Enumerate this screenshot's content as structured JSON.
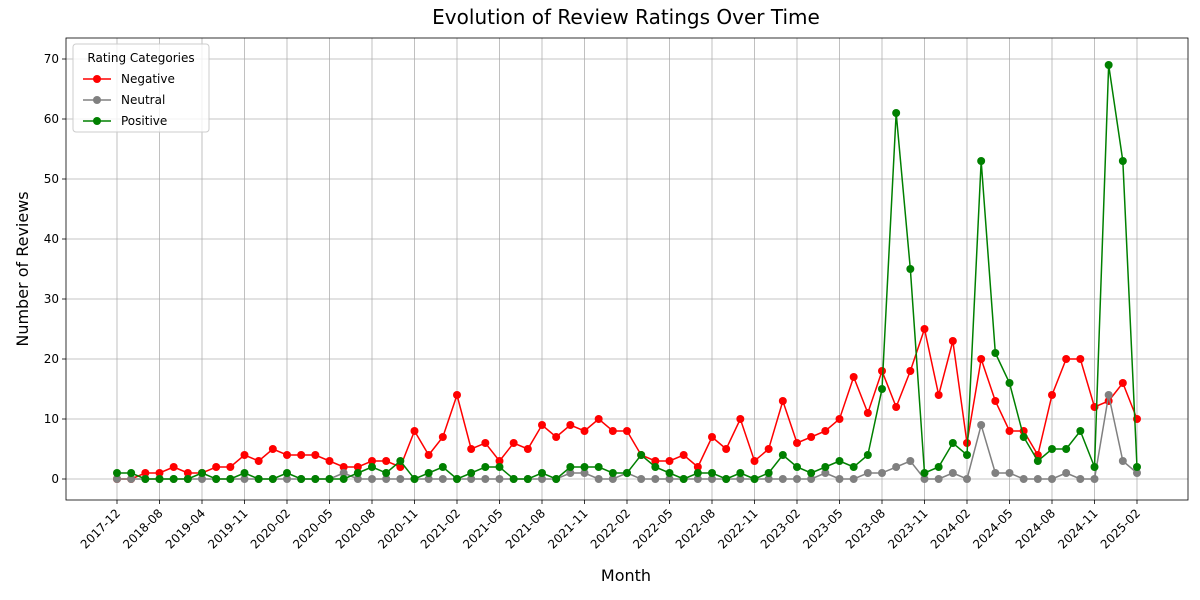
{
  "chart_data": {
    "type": "line",
    "title": "Evolution of Review Ratings Over Time",
    "x_label": "Month",
    "y_label": "Number of Reviews",
    "legend_title": "Rating Categories",
    "legend_position": "upper left",
    "grid": true,
    "categories": [
      "2017-12",
      null,
      null,
      "2018-08",
      null,
      null,
      "2019-04",
      null,
      null,
      "2019-11",
      null,
      null,
      "2020-02",
      null,
      null,
      "2020-05",
      null,
      null,
      "2020-08",
      null,
      null,
      "2020-11",
      null,
      null,
      "2021-02",
      null,
      null,
      "2021-05",
      null,
      null,
      "2021-08",
      null,
      null,
      "2021-11",
      null,
      null,
      "2022-02",
      null,
      null,
      "2022-05",
      null,
      null,
      "2022-08",
      null,
      null,
      "2022-11",
      null,
      null,
      "2023-02",
      null,
      null,
      "2023-05",
      null,
      null,
      "2023-08",
      null,
      null,
      "2023-11",
      null,
      null,
      "2024-02",
      null,
      null,
      "2024-05",
      null,
      null,
      "2024-08",
      null,
      null,
      "2024-11",
      null,
      null,
      "2025-02"
    ],
    "series": [
      {
        "name": "Negative",
        "color": "#ff0000",
        "values": [
          0,
          0,
          1,
          1,
          2,
          1,
          1,
          2,
          2,
          4,
          3,
          5,
          4,
          4,
          4,
          3,
          2,
          2,
          3,
          3,
          2,
          8,
          4,
          7,
          14,
          5,
          6,
          3,
          6,
          5,
          9,
          7,
          9,
          8,
          10,
          8,
          8,
          4,
          3,
          3,
          4,
          2,
          7,
          5,
          10,
          3,
          5,
          13,
          6,
          7,
          8,
          10,
          17,
          11,
          18,
          12,
          18,
          25,
          14,
          23,
          6,
          20,
          13,
          8,
          8,
          4,
          14,
          20,
          20,
          12,
          13,
          16,
          10
        ]
      },
      {
        "name": "Neutral",
        "color": "#808080",
        "values": [
          0,
          0,
          0,
          0,
          0,
          0,
          0,
          0,
          0,
          0,
          0,
          0,
          0,
          0,
          0,
          0,
          1,
          0,
          0,
          0,
          0,
          0,
          0,
          0,
          0,
          0,
          0,
          0,
          0,
          0,
          0,
          0,
          1,
          1,
          0,
          0,
          1,
          0,
          0,
          0,
          0,
          0,
          0,
          0,
          0,
          0,
          0,
          0,
          0,
          0,
          1,
          0,
          0,
          1,
          1,
          2,
          3,
          0,
          0,
          1,
          0,
          9,
          1,
          1,
          0,
          0,
          0,
          1,
          0,
          0,
          14,
          3,
          1
        ]
      },
      {
        "name": "Positive",
        "color": "#008000",
        "values": [
          1,
          1,
          0,
          0,
          0,
          0,
          1,
          0,
          0,
          1,
          0,
          0,
          1,
          0,
          0,
          0,
          0,
          1,
          2,
          1,
          3,
          0,
          1,
          2,
          0,
          1,
          2,
          2,
          0,
          0,
          1,
          0,
          2,
          2,
          2,
          1,
          1,
          4,
          2,
          1,
          0,
          1,
          1,
          0,
          1,
          0,
          1,
          4,
          2,
          1,
          2,
          3,
          2,
          4,
          15,
          61,
          35,
          1,
          2,
          6,
          4,
          53,
          21,
          16,
          7,
          3,
          5,
          5,
          8,
          2,
          69,
          53,
          2
        ]
      }
    ],
    "ylim": [
      -3.5,
      73.5
    ],
    "yticks": [
      0,
      10,
      20,
      30,
      40,
      50,
      60,
      70
    ]
  }
}
